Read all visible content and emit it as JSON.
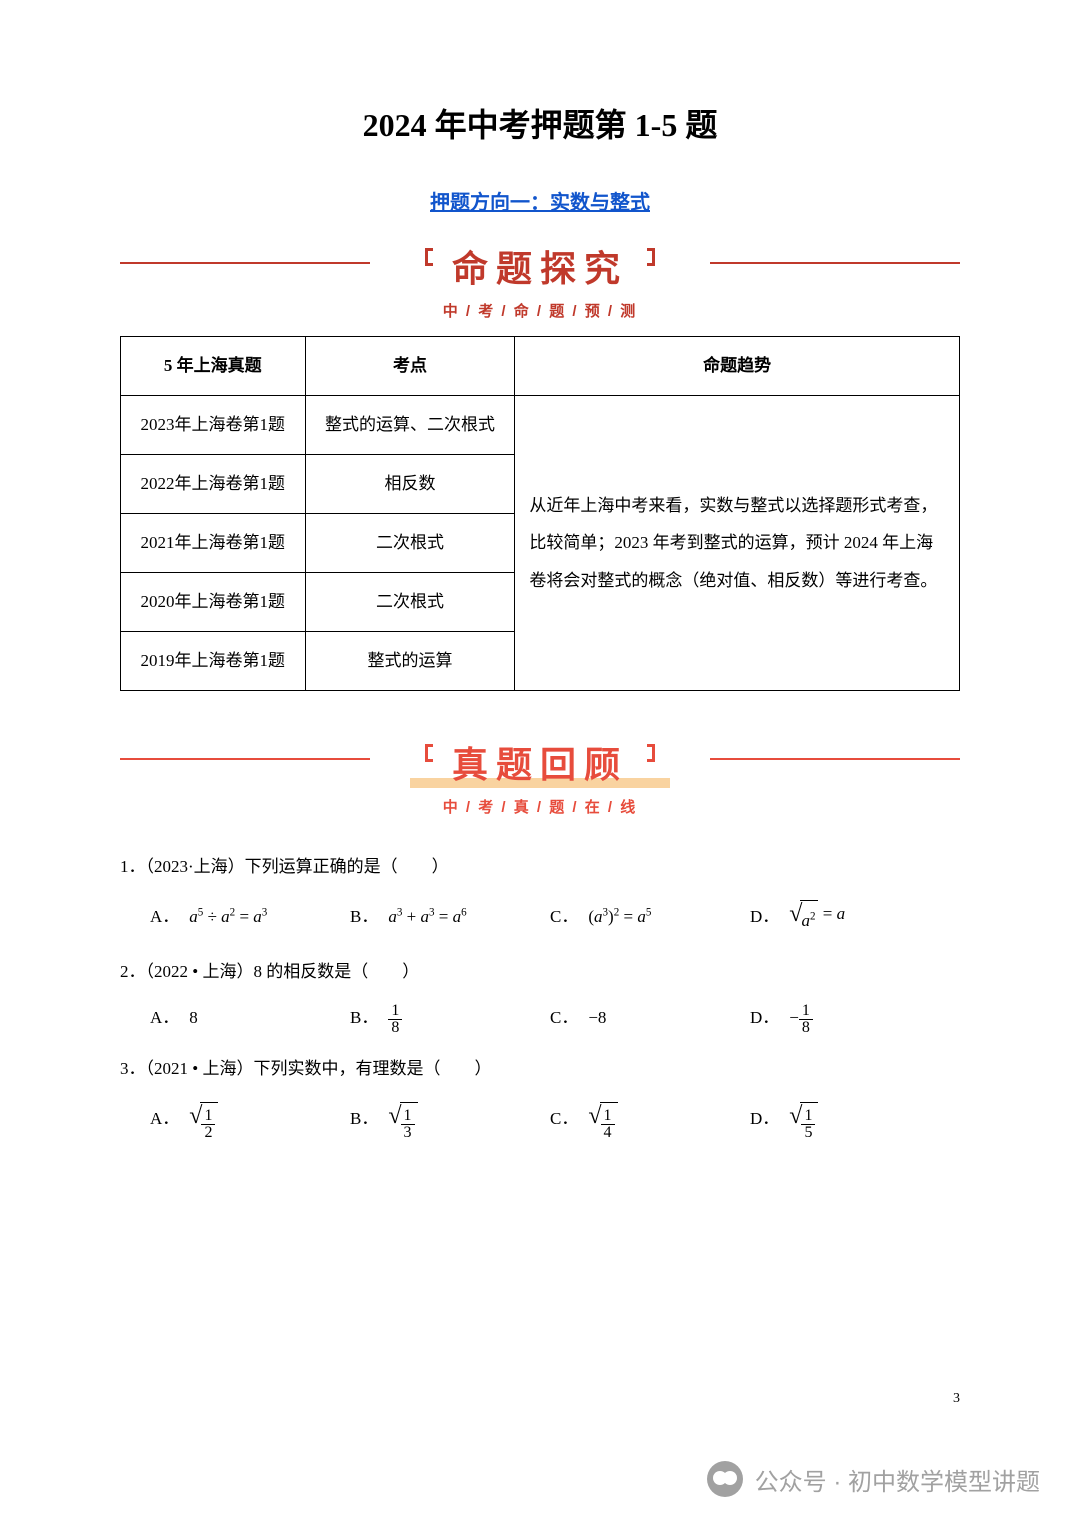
{
  "title": "2024 年中考押题第 1-5 题",
  "subtitle": "押题方向一：实数与整式",
  "section1": {
    "big": "命题探究",
    "sub": "中 / 考 / 命 / 题 / 预 / 测",
    "color": "#c0392b",
    "line_color": "#c0392b"
  },
  "table": {
    "columns": [
      "5 年上海真题",
      "考点",
      "命题趋势"
    ],
    "rows": [
      {
        "year": "2023年上海卷第1题",
        "topic": "整式的运算、二次根式"
      },
      {
        "year": "2022年上海卷第1题",
        "topic": "相反数"
      },
      {
        "year": "2021年上海卷第1题",
        "topic": "二次根式"
      },
      {
        "year": "2020年上海卷第1题",
        "topic": "二次根式"
      },
      {
        "year": "2019年上海卷第1题",
        "topic": "整式的运算"
      }
    ],
    "trend": "从近年上海中考来看，实数与整式以选择题形式考查，比较简单；2023 年考到整式的运算，预计 2024 年上海卷将会对整式的概念（绝对值、相反数）等进行考查。"
  },
  "section2": {
    "big": "真题回顾",
    "sub": "中 / 考 / 真 / 题 / 在 / 线",
    "color": "#e74c3c",
    "line_color": "#e74c3c",
    "highlight_bg": "#f9d3a0"
  },
  "questions": [
    {
      "stem_prefix": "1．（2023·上海）下列运算正确的是（　　）",
      "options": [
        {
          "label": "A．",
          "math_html": "<span class='math-i'>a</span><span class='sup'>5</span> ÷ <span class='math-i'>a</span><span class='sup'>2</span> = <span class='math-i'>a</span><span class='sup'>3</span>"
        },
        {
          "label": "B．",
          "math_html": "<span class='math-i'>a</span><span class='sup'>3</span> + <span class='math-i'>a</span><span class='sup'>3</span> = <span class='math-i'>a</span><span class='sup'>6</span>"
        },
        {
          "label": "C．",
          "math_html": "(<span class='math-i'>a</span><span class='sup'>3</span>)<span class='sup'>2</span> = <span class='math-i'>a</span><span class='sup'>5</span>"
        },
        {
          "label": "D．",
          "math_html": "<span class='sqrt-wrap'><span class='sqrt-sign'>√</span><span class='sqrt-body'><span class='math-i'>a</span><span class='sup'>2</span></span></span> = <span class='math-i'>a</span>"
        }
      ]
    },
    {
      "stem_prefix": "2．（2022 • 上海）8 的相反数是（　　）",
      "options": [
        {
          "label": "A．",
          "math_html": "8"
        },
        {
          "label": "B．",
          "math_html": "<span class='frac'><span class='n'>1</span><span class='d'>8</span></span>"
        },
        {
          "label": "C．",
          "math_html": "−8"
        },
        {
          "label": "D．",
          "math_html": "−<span class='frac'><span class='n'>1</span><span class='d'>8</span></span>"
        }
      ]
    },
    {
      "stem_prefix": "3．（2021 • 上海）下列实数中，有理数是（　　）",
      "options": [
        {
          "label": "A．",
          "math_html": "<span class='sqrt-wrap'><span class='sqrt-sign'>√</span><span class='sqrt-body'><span class='frac'><span class='n'>1</span><span class='d'>2</span></span></span></span>"
        },
        {
          "label": "B．",
          "math_html": "<span class='sqrt-wrap'><span class='sqrt-sign'>√</span><span class='sqrt-body'><span class='frac'><span class='n'>1</span><span class='d'>3</span></span></span></span>"
        },
        {
          "label": "C．",
          "math_html": "<span class='sqrt-wrap'><span class='sqrt-sign'>√</span><span class='sqrt-body'><span class='frac'><span class='n'>1</span><span class='d'>4</span></span></span></span>"
        },
        {
          "label": "D．",
          "math_html": "<span class='sqrt-wrap'><span class='sqrt-sign'>√</span><span class='sqrt-body'><span class='frac'><span class='n'>1</span><span class='d'>5</span></span></span></span>"
        }
      ]
    }
  ],
  "page_number": "3",
  "watermark": "公众号 · 初中数学模型讲题"
}
